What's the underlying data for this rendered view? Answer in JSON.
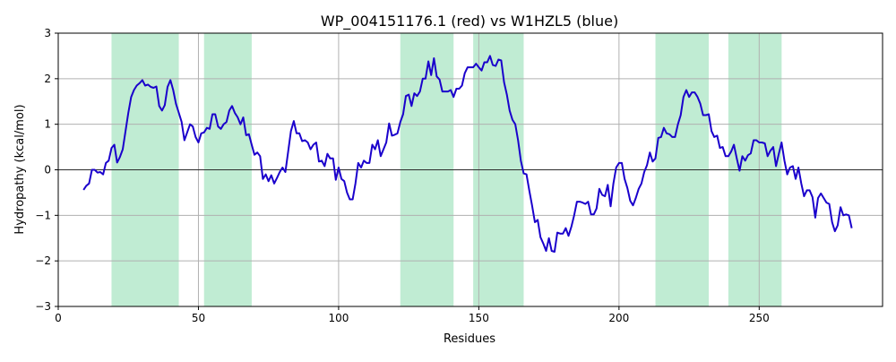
{
  "chart_data": {
    "type": "line",
    "title": "WP_004151176.1 (red) vs W1HZL5 (blue)",
    "xlabel": "Residues",
    "ylabel": "Hydropathy (kcal/mol)",
    "xlim": [
      0,
      294
    ],
    "ylim": [
      -3,
      3
    ],
    "x_ticks": [
      0,
      50,
      100,
      150,
      200,
      250
    ],
    "y_ticks": [
      -3,
      -2,
      -1,
      0,
      1,
      2,
      3
    ],
    "grid": true,
    "zero_line": true,
    "colors": {
      "line": "#1a00cc",
      "band": "#c0ecd3",
      "grid": "#b0b0b0",
      "zero": "#000000"
    },
    "highlight_ranges": [
      [
        19,
        43
      ],
      [
        52,
        69
      ],
      [
        122,
        141
      ],
      [
        148,
        166
      ],
      [
        213,
        232
      ],
      [
        239,
        258
      ]
    ],
    "series": [
      {
        "color": "#1a00cc",
        "x": [
          9,
          10,
          11,
          12,
          13,
          14,
          15,
          16,
          17,
          18,
          19,
          20,
          21,
          22,
          23,
          24,
          25,
          26,
          27,
          28,
          29,
          30,
          31,
          32,
          33,
          34,
          35,
          36,
          37,
          38,
          39,
          40,
          41,
          42,
          43,
          44,
          45,
          46,
          47,
          48,
          49,
          50,
          51,
          52,
          53,
          54,
          55,
          56,
          57,
          58,
          59,
          60,
          61,
          62,
          63,
          64,
          65,
          66,
          67,
          68,
          69,
          70,
          71,
          72,
          73,
          74,
          75,
          76,
          77,
          78,
          79,
          80,
          81,
          82,
          83,
          84,
          85,
          86,
          87,
          88,
          89,
          90,
          91,
          92,
          93,
          94,
          95,
          96,
          97,
          98,
          99,
          100,
          101,
          102,
          103,
          104,
          105,
          106,
          107,
          108,
          109,
          110,
          111,
          112,
          113,
          114,
          115,
          116,
          117,
          118,
          119,
          120,
          121,
          122,
          123,
          124,
          125,
          126,
          127,
          128,
          129,
          130,
          131,
          132,
          133,
          134,
          135,
          136,
          137,
          138,
          139,
          140,
          141,
          142,
          143,
          144,
          145,
          146,
          147,
          148,
          149,
          150,
          151,
          152,
          153,
          154,
          155,
          156,
          157,
          158,
          159,
          160,
          161,
          162,
          163,
          164,
          165,
          166,
          167,
          168,
          169,
          170,
          171,
          172,
          173,
          174,
          175,
          176,
          177,
          178,
          179,
          180,
          181,
          182,
          183,
          184,
          185,
          186,
          187,
          188,
          189,
          190,
          191,
          192,
          193,
          194,
          195,
          196,
          197,
          198,
          199,
          200,
          201,
          202,
          203,
          204,
          205,
          206,
          207,
          208,
          209,
          210,
          211,
          212,
          213,
          214,
          215,
          216,
          217,
          218,
          219,
          220,
          221,
          222,
          223,
          224,
          225,
          226,
          227,
          228,
          229,
          230,
          231,
          232,
          233,
          234,
          235,
          236,
          237,
          238,
          239,
          240,
          241,
          242,
          243,
          244,
          245,
          246,
          247,
          248,
          249,
          250,
          251,
          252,
          253,
          254,
          255,
          256,
          257,
          258,
          259,
          260,
          261,
          262,
          263,
          264,
          265,
          266,
          267,
          268,
          269,
          270,
          271,
          272,
          273,
          274,
          275,
          276,
          277,
          278,
          279,
          280,
          281,
          282,
          283
        ],
        "y": [
          -0.44,
          -0.35,
          -0.3,
          0.0,
          0.0,
          -0.06,
          -0.05,
          -0.1,
          0.15,
          0.2,
          0.48,
          0.55,
          0.16,
          0.28,
          0.45,
          0.85,
          1.25,
          1.6,
          1.75,
          1.85,
          1.9,
          1.97,
          1.85,
          1.87,
          1.82,
          1.8,
          1.83,
          1.4,
          1.3,
          1.42,
          1.82,
          1.97,
          1.75,
          1.45,
          1.25,
          1.05,
          0.65,
          0.82,
          1.0,
          0.95,
          0.72,
          0.6,
          0.8,
          0.82,
          0.92,
          0.9,
          1.22,
          1.22,
          0.95,
          0.9,
          1.0,
          1.05,
          1.3,
          1.4,
          1.25,
          1.15,
          1.0,
          1.15,
          0.76,
          0.78,
          0.55,
          0.33,
          0.38,
          0.3,
          -0.2,
          -0.1,
          -0.25,
          -0.12,
          -0.3,
          -0.18,
          -0.05,
          0.05,
          -0.05,
          0.4,
          0.85,
          1.07,
          0.8,
          0.8,
          0.63,
          0.65,
          0.6,
          0.45,
          0.55,
          0.6,
          0.18,
          0.2,
          0.08,
          0.35,
          0.25,
          0.25,
          -0.22,
          0.05,
          -0.2,
          -0.25,
          -0.5,
          -0.65,
          -0.65,
          -0.3,
          0.15,
          0.05,
          0.2,
          0.15,
          0.15,
          0.55,
          0.45,
          0.65,
          0.3,
          0.45,
          0.6,
          1.02,
          0.75,
          0.77,
          0.8,
          1.05,
          1.22,
          1.62,
          1.65,
          1.4,
          1.68,
          1.62,
          1.72,
          2.0,
          2.0,
          2.38,
          2.08,
          2.45,
          2.05,
          1.98,
          1.72,
          1.72,
          1.72,
          1.75,
          1.6,
          1.78,
          1.78,
          1.85,
          2.12,
          2.25,
          2.25,
          2.25,
          2.33,
          2.25,
          2.18,
          2.36,
          2.36,
          2.5,
          2.3,
          2.28,
          2.42,
          2.4,
          1.92,
          1.65,
          1.3,
          1.1,
          1.0,
          0.65,
          0.2,
          -0.08,
          -0.1,
          -0.45,
          -0.78,
          -1.15,
          -1.1,
          -1.48,
          -1.62,
          -1.78,
          -1.5,
          -1.78,
          -1.8,
          -1.38,
          -1.4,
          -1.4,
          -1.28,
          -1.45,
          -1.25,
          -1.0,
          -0.7,
          -0.7,
          -0.72,
          -0.75,
          -0.7,
          -0.98,
          -0.98,
          -0.85,
          -0.42,
          -0.55,
          -0.58,
          -0.33,
          -0.8,
          -0.3,
          0.05,
          0.15,
          0.15,
          -0.2,
          -0.4,
          -0.68,
          -0.78,
          -0.62,
          -0.42,
          -0.3,
          -0.05,
          0.1,
          0.38,
          0.18,
          0.25,
          0.7,
          0.72,
          0.92,
          0.8,
          0.78,
          0.72,
          0.72,
          1.0,
          1.2,
          1.6,
          1.75,
          1.6,
          1.7,
          1.7,
          1.6,
          1.45,
          1.2,
          1.2,
          1.22,
          0.85,
          0.72,
          0.75,
          0.48,
          0.5,
          0.3,
          0.3,
          0.4,
          0.55,
          0.25,
          -0.02,
          0.3,
          0.2,
          0.32,
          0.36,
          0.65,
          0.65,
          0.6,
          0.6,
          0.58,
          0.3,
          0.42,
          0.5,
          0.08,
          0.35,
          0.6,
          0.2,
          -0.1,
          0.05,
          0.08,
          -0.2,
          0.05,
          -0.3,
          -0.58,
          -0.45,
          -0.45,
          -0.6,
          -1.05,
          -0.62,
          -0.52,
          -0.62,
          -0.72,
          -0.75,
          -1.15,
          -1.35,
          -1.22,
          -0.82,
          -1.0,
          -0.98,
          -1.0,
          -1.28
        ]
      }
    ]
  }
}
